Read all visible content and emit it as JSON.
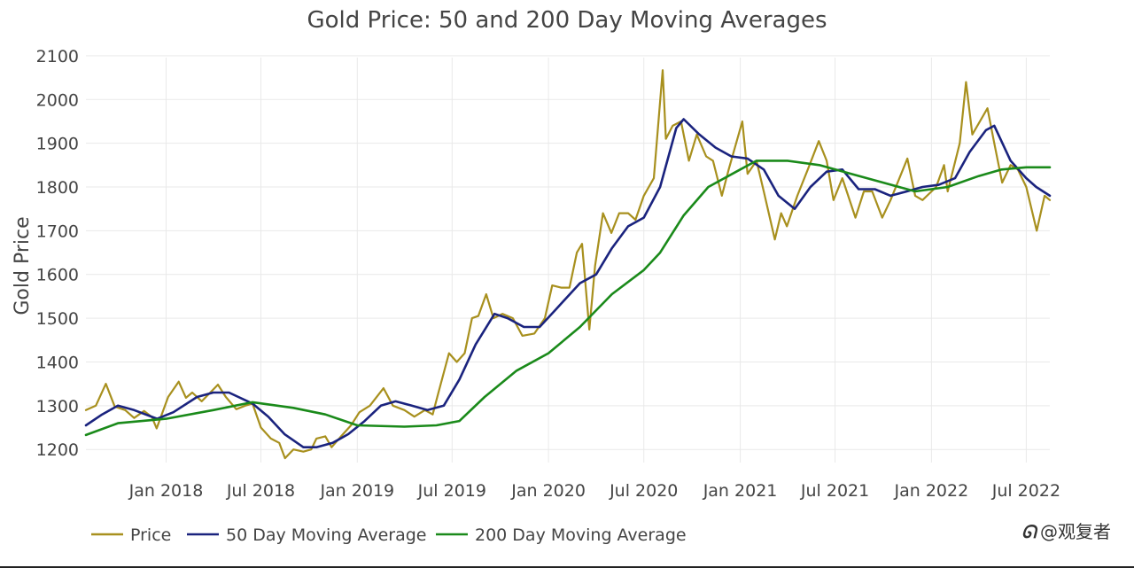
{
  "chart_data": {
    "type": "line",
    "title": "Gold Price: 50 and 200 Day Moving Averages",
    "xlabel": "",
    "ylabel": "Gold Price",
    "x_range": [
      "2017-08-01",
      "2022-08-15"
    ],
    "ylim": [
      1170,
      2110
    ],
    "x_ticks": [
      {
        "date": "2018-01-01",
        "label": "Jan 2018"
      },
      {
        "date": "2018-07-01",
        "label": "Jul 2018"
      },
      {
        "date": "2019-01-01",
        "label": "Jan 2019"
      },
      {
        "date": "2019-07-01",
        "label": "Jul 2019"
      },
      {
        "date": "2020-01-01",
        "label": "Jan 2020"
      },
      {
        "date": "2020-07-01",
        "label": "Jul 2020"
      },
      {
        "date": "2021-01-01",
        "label": "Jan 2021"
      },
      {
        "date": "2021-07-01",
        "label": "Jul 2021"
      },
      {
        "date": "2022-01-01",
        "label": "Jan 2022"
      },
      {
        "date": "2022-07-01",
        "label": "Jul 2022"
      }
    ],
    "y_ticks": [
      1200,
      1300,
      1400,
      1500,
      1600,
      1700,
      1800,
      1900,
      2000,
      2100
    ],
    "grid": true,
    "legend_position": "bottom",
    "series": [
      {
        "name": "Price",
        "color": "#a8901e",
        "points": [
          [
            "2017-08-01",
            1290
          ],
          [
            "2017-08-20",
            1300
          ],
          [
            "2017-09-08",
            1350
          ],
          [
            "2017-09-25",
            1298
          ],
          [
            "2017-10-15",
            1290
          ],
          [
            "2017-11-01",
            1272
          ],
          [
            "2017-11-20",
            1288
          ],
          [
            "2017-12-05",
            1274
          ],
          [
            "2017-12-14",
            1248
          ],
          [
            "2018-01-05",
            1320
          ],
          [
            "2018-01-25",
            1355
          ],
          [
            "2018-02-08",
            1318
          ],
          [
            "2018-02-20",
            1330
          ],
          [
            "2018-03-10",
            1310
          ],
          [
            "2018-04-10",
            1348
          ],
          [
            "2018-04-25",
            1320
          ],
          [
            "2018-05-15",
            1292
          ],
          [
            "2018-06-01",
            1300
          ],
          [
            "2018-06-15",
            1305
          ],
          [
            "2018-07-01",
            1250
          ],
          [
            "2018-07-20",
            1225
          ],
          [
            "2018-08-05",
            1215
          ],
          [
            "2018-08-16",
            1180
          ],
          [
            "2018-09-01",
            1200
          ],
          [
            "2018-09-20",
            1195
          ],
          [
            "2018-10-05",
            1200
          ],
          [
            "2018-10-15",
            1225
          ],
          [
            "2018-11-01",
            1230
          ],
          [
            "2018-11-13",
            1205
          ],
          [
            "2018-12-01",
            1230
          ],
          [
            "2018-12-20",
            1255
          ],
          [
            "2019-01-05",
            1285
          ],
          [
            "2019-01-25",
            1300
          ],
          [
            "2019-02-20",
            1340
          ],
          [
            "2019-03-10",
            1300
          ],
          [
            "2019-04-01",
            1290
          ],
          [
            "2019-04-20",
            1275
          ],
          [
            "2019-05-10",
            1290
          ],
          [
            "2019-05-25",
            1280
          ],
          [
            "2019-06-05",
            1330
          ],
          [
            "2019-06-25",
            1420
          ],
          [
            "2019-07-10",
            1400
          ],
          [
            "2019-07-25",
            1420
          ],
          [
            "2019-08-08",
            1500
          ],
          [
            "2019-08-20",
            1505
          ],
          [
            "2019-09-04",
            1555
          ],
          [
            "2019-09-18",
            1500
          ],
          [
            "2019-10-05",
            1510
          ],
          [
            "2019-10-25",
            1500
          ],
          [
            "2019-11-12",
            1460
          ],
          [
            "2019-12-05",
            1465
          ],
          [
            "2019-12-25",
            1500
          ],
          [
            "2020-01-08",
            1575
          ],
          [
            "2020-01-25",
            1570
          ],
          [
            "2020-02-10",
            1570
          ],
          [
            "2020-02-24",
            1650
          ],
          [
            "2020-03-05",
            1670
          ],
          [
            "2020-03-19",
            1474
          ],
          [
            "2020-03-30",
            1620
          ],
          [
            "2020-04-14",
            1740
          ],
          [
            "2020-04-30",
            1695
          ],
          [
            "2020-05-15",
            1740
          ],
          [
            "2020-06-01",
            1740
          ],
          [
            "2020-06-15",
            1725
          ],
          [
            "2020-07-01",
            1780
          ],
          [
            "2020-07-20",
            1820
          ],
          [
            "2020-08-06",
            2067
          ],
          [
            "2020-08-12",
            1910
          ],
          [
            "2020-08-25",
            1940
          ],
          [
            "2020-09-10",
            1950
          ],
          [
            "2020-09-25",
            1860
          ],
          [
            "2020-10-10",
            1920
          ],
          [
            "2020-10-28",
            1870
          ],
          [
            "2020-11-10",
            1860
          ],
          [
            "2020-11-27",
            1780
          ],
          [
            "2020-12-10",
            1840
          ],
          [
            "2021-01-05",
            1950
          ],
          [
            "2021-01-15",
            1830
          ],
          [
            "2021-02-01",
            1860
          ],
          [
            "2021-02-15",
            1790
          ],
          [
            "2021-03-08",
            1680
          ],
          [
            "2021-03-20",
            1740
          ],
          [
            "2021-03-31",
            1710
          ],
          [
            "2021-04-20",
            1780
          ],
          [
            "2021-05-10",
            1840
          ],
          [
            "2021-05-31",
            1905
          ],
          [
            "2021-06-15",
            1860
          ],
          [
            "2021-06-28",
            1770
          ],
          [
            "2021-07-15",
            1820
          ],
          [
            "2021-08-09",
            1730
          ],
          [
            "2021-08-25",
            1790
          ],
          [
            "2021-09-10",
            1790
          ],
          [
            "2021-09-29",
            1730
          ],
          [
            "2021-10-15",
            1770
          ],
          [
            "2021-11-16",
            1865
          ],
          [
            "2021-12-01",
            1780
          ],
          [
            "2021-12-15",
            1770
          ],
          [
            "2022-01-10",
            1800
          ],
          [
            "2022-01-25",
            1850
          ],
          [
            "2022-02-01",
            1790
          ],
          [
            "2022-02-24",
            1900
          ],
          [
            "2022-03-08",
            2040
          ],
          [
            "2022-03-20",
            1920
          ],
          [
            "2022-04-18",
            1980
          ],
          [
            "2022-05-01",
            1900
          ],
          [
            "2022-05-16",
            1810
          ],
          [
            "2022-06-01",
            1850
          ],
          [
            "2022-06-15",
            1840
          ],
          [
            "2022-07-01",
            1800
          ],
          [
            "2022-07-21",
            1700
          ],
          [
            "2022-08-05",
            1780
          ],
          [
            "2022-08-15",
            1770
          ]
        ]
      },
      {
        "name": "50 Day Moving Average",
        "color": "#1a237e",
        "points": [
          [
            "2017-08-01",
            1255
          ],
          [
            "2017-09-01",
            1280
          ],
          [
            "2017-10-01",
            1300
          ],
          [
            "2017-11-01",
            1290
          ],
          [
            "2017-12-15",
            1270
          ],
          [
            "2018-01-15",
            1285
          ],
          [
            "2018-03-01",
            1320
          ],
          [
            "2018-04-01",
            1330
          ],
          [
            "2018-05-01",
            1330
          ],
          [
            "2018-06-15",
            1305
          ],
          [
            "2018-07-15",
            1275
          ],
          [
            "2018-08-15",
            1235
          ],
          [
            "2018-09-20",
            1205
          ],
          [
            "2018-10-15",
            1205
          ],
          [
            "2018-11-15",
            1215
          ],
          [
            "2018-12-15",
            1235
          ],
          [
            "2019-01-15",
            1265
          ],
          [
            "2019-02-15",
            1300
          ],
          [
            "2019-03-15",
            1310
          ],
          [
            "2019-04-15",
            1300
          ],
          [
            "2019-05-15",
            1290
          ],
          [
            "2019-06-15",
            1300
          ],
          [
            "2019-07-15",
            1360
          ],
          [
            "2019-08-15",
            1440
          ],
          [
            "2019-09-20",
            1510
          ],
          [
            "2019-10-15",
            1500
          ],
          [
            "2019-11-15",
            1480
          ],
          [
            "2019-12-15",
            1480
          ],
          [
            "2020-01-15",
            1520
          ],
          [
            "2020-03-01",
            1580
          ],
          [
            "2020-04-01",
            1600
          ],
          [
            "2020-05-01",
            1660
          ],
          [
            "2020-06-01",
            1710
          ],
          [
            "2020-07-01",
            1730
          ],
          [
            "2020-08-01",
            1800
          ],
          [
            "2020-09-01",
            1935
          ],
          [
            "2020-09-15",
            1955
          ],
          [
            "2020-10-15",
            1920
          ],
          [
            "2020-11-15",
            1890
          ],
          [
            "2020-12-15",
            1870
          ],
          [
            "2021-01-15",
            1865
          ],
          [
            "2021-02-15",
            1840
          ],
          [
            "2021-03-15",
            1780
          ],
          [
            "2021-04-15",
            1750
          ],
          [
            "2021-05-15",
            1800
          ],
          [
            "2021-06-15",
            1835
          ],
          [
            "2021-07-15",
            1840
          ],
          [
            "2021-08-15",
            1795
          ],
          [
            "2021-09-15",
            1795
          ],
          [
            "2021-10-15",
            1780
          ],
          [
            "2021-11-15",
            1790
          ],
          [
            "2021-12-15",
            1800
          ],
          [
            "2022-01-15",
            1805
          ],
          [
            "2022-02-15",
            1820
          ],
          [
            "2022-03-15",
            1880
          ],
          [
            "2022-04-15",
            1930
          ],
          [
            "2022-05-01",
            1940
          ],
          [
            "2022-06-01",
            1860
          ],
          [
            "2022-07-01",
            1820
          ],
          [
            "2022-07-20",
            1800
          ],
          [
            "2022-08-15",
            1780
          ]
        ]
      },
      {
        "name": "200 Day Moving Average",
        "color": "#1a8a1a",
        "points": [
          [
            "2017-08-01",
            1233
          ],
          [
            "2017-10-01",
            1260
          ],
          [
            "2018-01-01",
            1270
          ],
          [
            "2018-04-01",
            1290
          ],
          [
            "2018-06-15",
            1308
          ],
          [
            "2018-09-01",
            1295
          ],
          [
            "2018-11-01",
            1280
          ],
          [
            "2019-01-01",
            1255
          ],
          [
            "2019-04-01",
            1252
          ],
          [
            "2019-06-01",
            1255
          ],
          [
            "2019-07-15",
            1265
          ],
          [
            "2019-09-01",
            1320
          ],
          [
            "2019-11-01",
            1380
          ],
          [
            "2020-01-01",
            1420
          ],
          [
            "2020-03-01",
            1480
          ],
          [
            "2020-05-01",
            1555
          ],
          [
            "2020-07-01",
            1610
          ],
          [
            "2020-08-01",
            1650
          ],
          [
            "2020-09-15",
            1735
          ],
          [
            "2020-11-01",
            1800
          ],
          [
            "2021-01-01",
            1840
          ],
          [
            "2021-02-01",
            1860
          ],
          [
            "2021-04-01",
            1860
          ],
          [
            "2021-06-01",
            1850
          ],
          [
            "2021-08-01",
            1830
          ],
          [
            "2021-10-01",
            1810
          ],
          [
            "2021-12-01",
            1790
          ],
          [
            "2022-02-01",
            1800
          ],
          [
            "2022-04-01",
            1825
          ],
          [
            "2022-05-15",
            1840
          ],
          [
            "2022-07-01",
            1845
          ],
          [
            "2022-08-15",
            1845
          ]
        ]
      }
    ]
  },
  "watermark": "@观复者"
}
